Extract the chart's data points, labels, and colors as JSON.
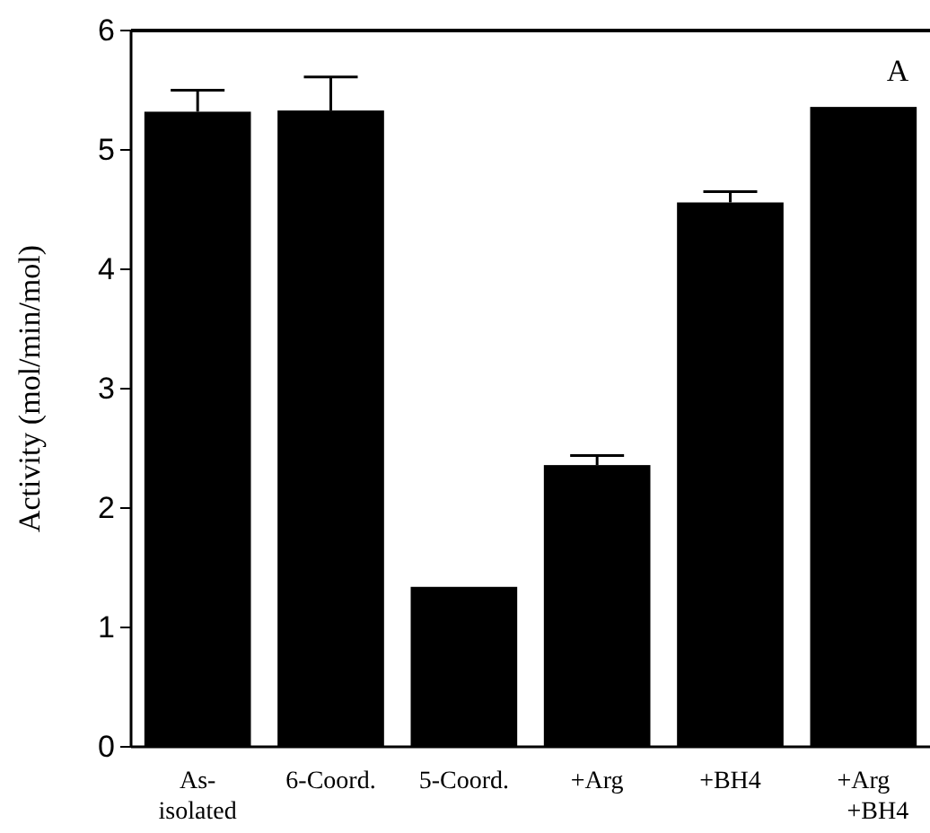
{
  "chart_data": {
    "type": "bar",
    "ylabel": "Activity (mol/min/mol)",
    "categories": [
      "As-\nisolated",
      "6-Coord.",
      "5-Coord.",
      "+Arg",
      "+BH4",
      "+Arg\n+BH4"
    ],
    "values": [
      5.32,
      5.33,
      1.34,
      2.36,
      4.56,
      5.36
    ],
    "errors": [
      [
        5.32,
        5.5
      ],
      [
        5.33,
        5.61
      ],
      null,
      [
        2.36,
        2.44
      ],
      [
        4.56,
        4.65
      ],
      null
    ],
    "color": "#000000",
    "ylim": [
      0,
      6
    ],
    "yticks": [
      0,
      1,
      2,
      3,
      4,
      5,
      6
    ],
    "annotations": [
      "A"
    ],
    "grid": false
  }
}
